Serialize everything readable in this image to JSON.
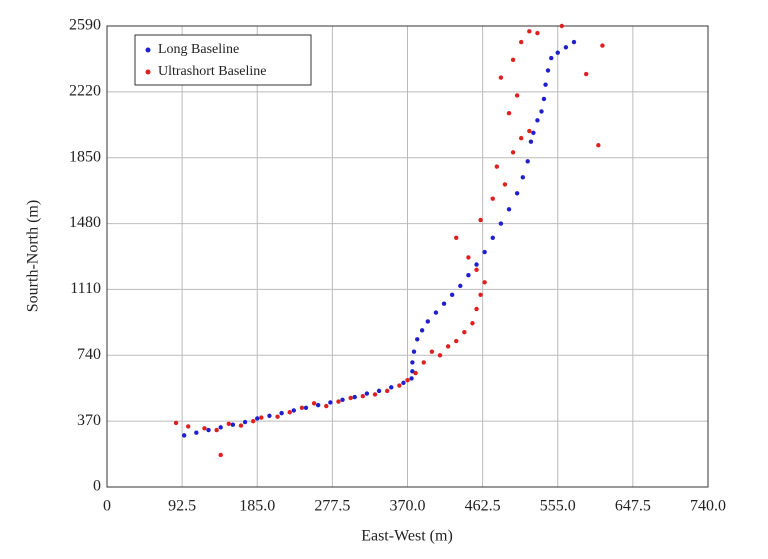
{
  "chart_data": {
    "type": "scatter",
    "xlabel": "East-West (m)",
    "ylabel": "Sourth-North (m)",
    "xlim": [
      0,
      740
    ],
    "ylim": [
      0,
      2590
    ],
    "xticks": [
      0,
      92.5,
      {
        "value": 185,
        "label": "185.0"
      },
      277.5,
      {
        "value": 370,
        "label": "370.0"
      },
      462.5,
      {
        "value": 555,
        "label": "555.0"
      },
      647.5,
      {
        "value": 740,
        "label": "740.0"
      }
    ],
    "yticks": [
      0,
      370,
      740,
      1110,
      1480,
      1850,
      2220,
      2590
    ],
    "grid": true,
    "legend": "upper left",
    "series": [
      {
        "name": "Long Baseline",
        "color": "#1f1fd0",
        "x": [
          95,
          110,
          125,
          140,
          155,
          170,
          185,
          200,
          215,
          230,
          245,
          260,
          275,
          290,
          305,
          320,
          335,
          350,
          365,
          375,
          376,
          376,
          378,
          382,
          388,
          395,
          405,
          415,
          425,
          435,
          445,
          455,
          465,
          475,
          485,
          495,
          505,
          512,
          518,
          522,
          525,
          530,
          535,
          538,
          540,
          543,
          547,
          555,
          565,
          575
        ],
        "values": [
          290,
          305,
          320,
          335,
          350,
          365,
          385,
          400,
          415,
          430,
          445,
          460,
          475,
          490,
          505,
          525,
          540,
          560,
          585,
          610,
          650,
          700,
          760,
          830,
          880,
          930,
          980,
          1030,
          1080,
          1130,
          1190,
          1250,
          1320,
          1400,
          1480,
          1560,
          1650,
          1740,
          1830,
          1940,
          1990,
          2060,
          2110,
          2180,
          2260,
          2340,
          2410,
          2440,
          2470,
          2500
        ]
      },
      {
        "name": "Ultrashort Baseline",
        "color": "#e02020",
        "x": [
          85,
          100,
          120,
          135,
          150,
          165,
          180,
          190,
          140,
          210,
          225,
          240,
          255,
          270,
          285,
          300,
          315,
          330,
          345,
          360,
          370,
          380,
          390,
          400,
          410,
          420,
          430,
          440,
          450,
          455,
          460,
          465,
          455,
          445,
          430,
          460,
          475,
          490,
          480,
          500,
          510,
          520,
          495,
          505,
          485,
          500,
          510,
          520,
          530,
          590,
          605,
          610,
          560
        ],
        "values": [
          360,
          340,
          330,
          320,
          355,
          345,
          370,
          390,
          180,
          395,
          420,
          445,
          470,
          455,
          480,
          500,
          510,
          520,
          540,
          570,
          600,
          640,
          700,
          760,
          740,
          790,
          820,
          870,
          920,
          1000,
          1080,
          1150,
          1220,
          1290,
          1400,
          1500,
          1620,
          1700,
          1800,
          1880,
          1960,
          2000,
          2100,
          2200,
          2300,
          2400,
          2500,
          2560,
          2550,
          2320,
          1920,
          2480,
          2590
        ]
      }
    ]
  }
}
